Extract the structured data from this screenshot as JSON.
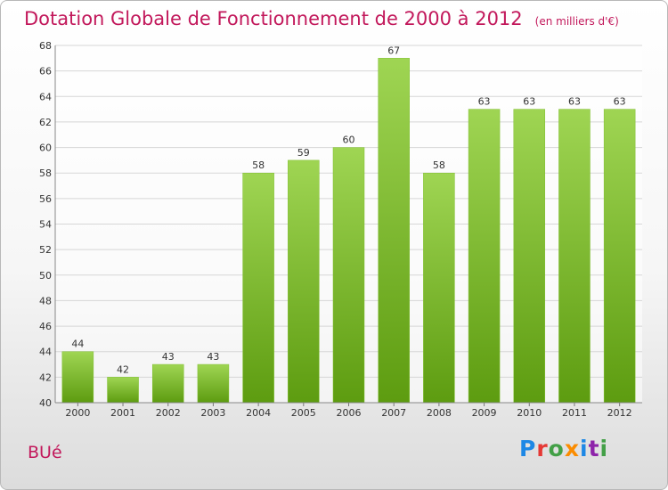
{
  "header": {
    "title": "Dotation Globale de Fonctionnement de 2000 à 2012",
    "unit": "(en milliers d'€)"
  },
  "footer": {
    "place": "BUé",
    "brand_letters": [
      "P",
      "r",
      "o",
      "x",
      "i",
      "t",
      "i"
    ]
  },
  "colors": {
    "title": "#c2185b",
    "bar_top": "#9fd553",
    "bar_bottom": "#5d9c10",
    "brand": [
      "#1e88e5",
      "#e53935",
      "#43a047",
      "#fb8c00",
      "#1e88e5",
      "#8e24aa",
      "#43a047"
    ]
  },
  "chart_data": {
    "type": "bar",
    "categories": [
      "2000",
      "2001",
      "2002",
      "2003",
      "2004",
      "2005",
      "2006",
      "2007",
      "2008",
      "2009",
      "2010",
      "2011",
      "2012"
    ],
    "values": [
      44,
      42,
      43,
      43,
      58,
      59,
      60,
      67,
      58,
      63,
      63,
      63,
      63
    ],
    "title": "Dotation Globale de Fonctionnement de 2000 à 2012",
    "ylabel": "",
    "xlabel": "",
    "ylim": [
      40,
      68
    ],
    "yticks": [
      40,
      42,
      44,
      46,
      48,
      50,
      52,
      54,
      56,
      58,
      60,
      62,
      64,
      66,
      68
    ],
    "grid": true,
    "legend": "none"
  }
}
